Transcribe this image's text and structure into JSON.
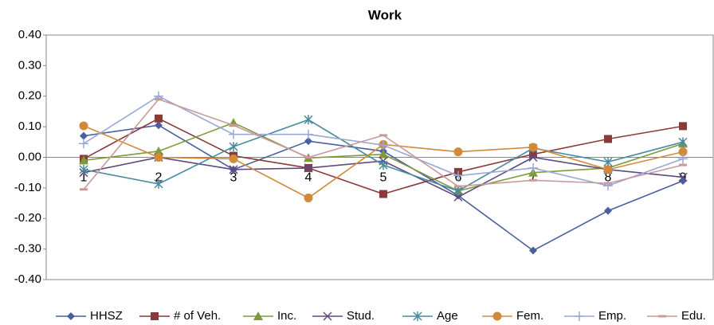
{
  "chart_data": {
    "type": "line",
    "title": "Work",
    "categories": [
      "1",
      "2",
      "3",
      "4",
      "5",
      "6",
      "7",
      "8",
      "9"
    ],
    "ylim": [
      -0.4,
      0.4
    ],
    "yticks": [
      {
        "value": 0.4,
        "label": "0.40"
      },
      {
        "value": 0.3,
        "label": "0.30"
      },
      {
        "value": 0.2,
        "label": "0.20"
      },
      {
        "value": 0.1,
        "label": "0.10"
      },
      {
        "value": 0,
        "label": "0.00"
      },
      {
        "value": -0.1,
        "label": "-0.10"
      },
      {
        "value": -0.2,
        "label": "-0.20"
      },
      {
        "value": -0.3,
        "label": "-0.30"
      },
      {
        "value": -0.4,
        "label": "-0.40"
      }
    ],
    "grid": false,
    "legend": "bottom",
    "series": [
      {
        "name": "HHSZ",
        "color": "#4a5f9e",
        "marker": "diamond",
        "values": [
          0.07,
          0.105,
          -0.04,
          0.053,
          0.02,
          -0.125,
          -0.305,
          -0.175,
          -0.077
        ]
      },
      {
        "name": "# of Veh.",
        "color": "#8b3a3a",
        "marker": "square",
        "values": [
          -0.005,
          0.127,
          0.005,
          -0.035,
          -0.12,
          -0.048,
          0.01,
          0.06,
          0.102
        ]
      },
      {
        "name": "Inc.",
        "color": "#7f9a3a",
        "marker": "triangle",
        "values": [
          -0.01,
          0.02,
          0.113,
          -0.002,
          0.01,
          -0.11,
          -0.05,
          -0.035,
          0.045
        ]
      },
      {
        "name": "Stud.",
        "color": "#5e4a80",
        "marker": "x",
        "values": [
          -0.05,
          0.0,
          -0.04,
          -0.035,
          -0.012,
          -0.13,
          0.0,
          -0.04,
          -0.065
        ]
      },
      {
        "name": "Age",
        "color": "#4a8aa0",
        "marker": "star",
        "values": [
          -0.04,
          -0.087,
          0.035,
          0.123,
          -0.025,
          -0.11,
          0.03,
          -0.015,
          0.05
        ]
      },
      {
        "name": "Fem.",
        "color": "#d08a3a",
        "marker": "circle",
        "values": [
          0.103,
          0.0,
          -0.005,
          -0.133,
          0.042,
          0.018,
          0.033,
          -0.04,
          0.018
        ]
      },
      {
        "name": "Emp.",
        "color": "#9aa8d8",
        "marker": "plus",
        "values": [
          0.045,
          0.2,
          0.075,
          0.075,
          0.04,
          -0.06,
          -0.035,
          -0.093,
          -0.005
        ]
      },
      {
        "name": "Edu.",
        "color": "#c89a9a",
        "marker": "dash",
        "values": [
          -0.105,
          0.19,
          0.105,
          0.0,
          0.072,
          -0.095,
          -0.075,
          -0.085,
          -0.025
        ]
      }
    ]
  }
}
